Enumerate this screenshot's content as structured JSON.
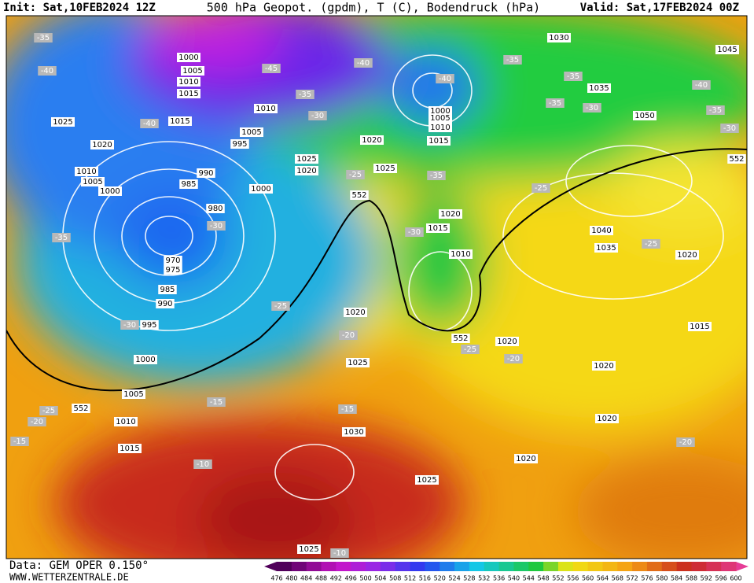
{
  "header": {
    "init": "Init: Sat,10FEB2024 12Z",
    "title": "500 hPa Geopot. (gpdm), T (C), Bodendruck (hPa)",
    "valid": "Valid: Sat,17FEB2024 00Z"
  },
  "pressure_labels": [
    1030,
    1045,
    1035,
    1050,
    1000,
    1005,
    1010,
    1015,
    1015,
    1025,
    1020,
    1010,
    1005,
    1000,
    1010,
    1005,
    995,
    990,
    985,
    980,
    970,
    975,
    985,
    990,
    995,
    1000,
    1005,
    1010,
    1015,
    1000,
    1025,
    1020,
    1020,
    1025,
    1000,
    1005,
    1010,
    1015,
    1020,
    1015,
    1010,
    1040,
    1035,
    1020,
    1015,
    1020,
    1025,
    1020,
    1020,
    1020,
    1030,
    1025,
    1020,
    1025
  ],
  "temperature_labels": [
    -35,
    -40,
    -45,
    -40,
    -40,
    -35,
    -35,
    -35,
    -30,
    -40,
    -35,
    -30,
    -40,
    -35,
    -30,
    -25,
    -35,
    -25,
    -30,
    -30,
    -35,
    -25,
    -30,
    -20,
    -25,
    -20,
    -15,
    -15,
    -25,
    -20,
    -15,
    -10,
    -10,
    -20,
    -25
  ],
  "geopotential_labels": [
    552,
    552,
    552,
    552
  ],
  "colorbar": {
    "values": [
      476,
      480,
      484,
      488,
      492,
      496,
      500,
      504,
      508,
      512,
      516,
      520,
      524,
      528,
      532,
      536,
      540,
      544,
      548,
      552,
      556,
      560,
      564,
      568,
      572,
      576,
      580,
      584,
      588,
      592,
      596,
      600
    ]
  },
  "footer": {
    "data": "Data: GEM OPER 0.150°",
    "site": "WWW.WETTERZENTRALE.DE"
  }
}
